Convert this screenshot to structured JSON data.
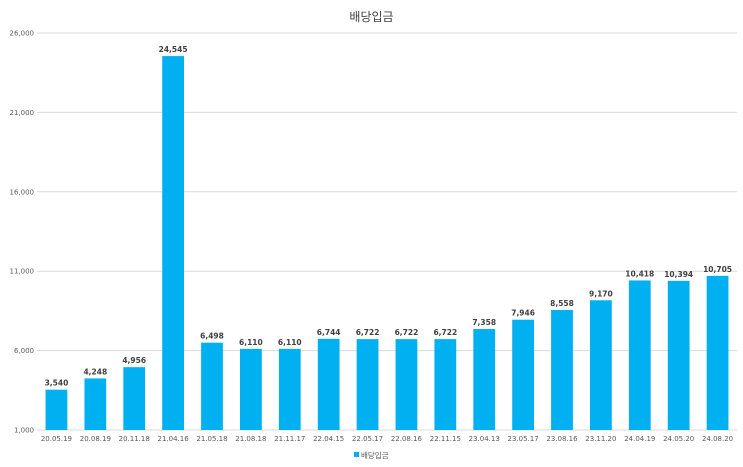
{
  "chart_data": {
    "type": "bar",
    "title": "배당입금",
    "categories": [
      "20.05.19",
      "20.08.19",
      "20.11.18",
      "21.04.16",
      "21.05.18",
      "21.08.18",
      "21.11.17",
      "22.04.15",
      "22.05.17",
      "22.08.16",
      "22.11.15",
      "23.04.13",
      "23.05.17",
      "23.08.16",
      "23.11.20",
      "24.04.19",
      "24.05.20",
      "24.08.20"
    ],
    "series": [
      {
        "name": "배당입금",
        "color": "#00B0F0",
        "values": [
          3540,
          4248,
          4956,
          24545,
          6498,
          6110,
          6110,
          6744,
          6722,
          6722,
          6722,
          7358,
          7946,
          8558,
          9170,
          10418,
          10394,
          10705
        ],
        "value_labels": [
          "3,540",
          "4,248",
          "4,956",
          "24,545",
          "6,498",
          "6,110",
          "6,110",
          "6,744",
          "6,722",
          "6,722",
          "6,722",
          "7,358",
          "7,946",
          "8,558",
          "9,170",
          "10,418",
          "10,394",
          "10,705"
        ]
      }
    ],
    "y_ticks": [
      "1,000",
      "6,000",
      "11,000",
      "16,000",
      "21,000",
      "26,000"
    ],
    "ylim": [
      1000,
      26000
    ],
    "xlabel": "",
    "ylabel": "",
    "grid": "horizontal",
    "legend_position": "bottom"
  }
}
